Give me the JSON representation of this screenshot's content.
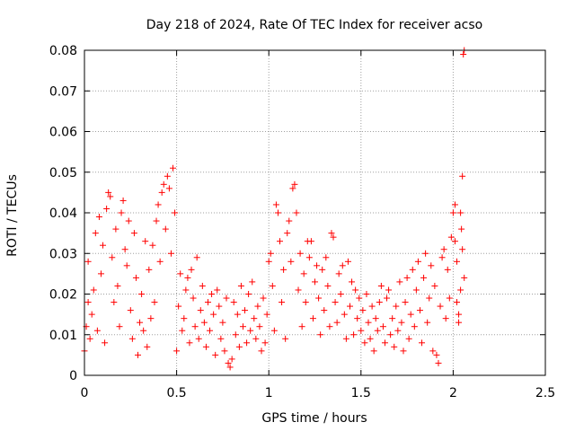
{
  "chart_data": {
    "type": "scatter",
    "title": "Day 218 of 2024, Rate Of TEC Index for receiver acso",
    "xlabel": "GPS time / hours",
    "ylabel": "ROTI / TECUs",
    "xlim": [
      0,
      2.5
    ],
    "ylim": [
      0,
      0.08
    ],
    "x_ticks": [
      "0",
      "0.5",
      "1",
      "1.5",
      "2",
      "2.5"
    ],
    "y_ticks": [
      "0",
      "0.01",
      "0.02",
      "0.03",
      "0.04",
      "0.05",
      "0.06",
      "0.07",
      "0.08"
    ],
    "grid": true,
    "marker": "plus",
    "marker_color": "#ff0000",
    "series": [
      {
        "points": [
          [
            0.0,
            0.006
          ],
          [
            0.01,
            0.012
          ],
          [
            0.02,
            0.018
          ],
          [
            0.02,
            0.028
          ],
          [
            0.03,
            0.009
          ],
          [
            0.04,
            0.015
          ],
          [
            0.05,
            0.021
          ],
          [
            0.06,
            0.035
          ],
          [
            0.07,
            0.011
          ],
          [
            0.08,
            0.039
          ],
          [
            0.09,
            0.025
          ],
          [
            0.1,
            0.032
          ],
          [
            0.11,
            0.008
          ],
          [
            0.12,
            0.041
          ],
          [
            0.13,
            0.045
          ],
          [
            0.14,
            0.044
          ],
          [
            0.15,
            0.029
          ],
          [
            0.16,
            0.018
          ],
          [
            0.17,
            0.036
          ],
          [
            0.18,
            0.022
          ],
          [
            0.19,
            0.012
          ],
          [
            0.2,
            0.04
          ],
          [
            0.21,
            0.043
          ],
          [
            0.22,
            0.031
          ],
          [
            0.23,
            0.027
          ],
          [
            0.24,
            0.038
          ],
          [
            0.25,
            0.016
          ],
          [
            0.26,
            0.009
          ],
          [
            0.27,
            0.035
          ],
          [
            0.28,
            0.024
          ],
          [
            0.29,
            0.005
          ],
          [
            0.3,
            0.013
          ],
          [
            0.31,
            0.02
          ],
          [
            0.32,
            0.011
          ],
          [
            0.33,
            0.033
          ],
          [
            0.34,
            0.007
          ],
          [
            0.35,
            0.026
          ],
          [
            0.36,
            0.014
          ],
          [
            0.37,
            0.032
          ],
          [
            0.38,
            0.018
          ],
          [
            0.39,
            0.038
          ],
          [
            0.4,
            0.042
          ],
          [
            0.41,
            0.028
          ],
          [
            0.42,
            0.045
          ],
          [
            0.43,
            0.047
          ],
          [
            0.44,
            0.036
          ],
          [
            0.45,
            0.049
          ],
          [
            0.46,
            0.046
          ],
          [
            0.47,
            0.03
          ],
          [
            0.48,
            0.051
          ],
          [
            0.49,
            0.04
          ],
          [
            0.5,
            0.006
          ],
          [
            0.51,
            0.017
          ],
          [
            0.52,
            0.025
          ],
          [
            0.53,
            0.011
          ],
          [
            0.54,
            0.014
          ],
          [
            0.55,
            0.021
          ],
          [
            0.56,
            0.024
          ],
          [
            0.57,
            0.008
          ],
          [
            0.58,
            0.026
          ],
          [
            0.59,
            0.019
          ],
          [
            0.6,
            0.012
          ],
          [
            0.61,
            0.029
          ],
          [
            0.62,
            0.009
          ],
          [
            0.63,
            0.016
          ],
          [
            0.64,
            0.022
          ],
          [
            0.65,
            0.013
          ],
          [
            0.66,
            0.007
          ],
          [
            0.67,
            0.018
          ],
          [
            0.68,
            0.011
          ],
          [
            0.69,
            0.02
          ],
          [
            0.7,
            0.015
          ],
          [
            0.71,
            0.005
          ],
          [
            0.72,
            0.021
          ],
          [
            0.73,
            0.017
          ],
          [
            0.74,
            0.009
          ],
          [
            0.75,
            0.013
          ],
          [
            0.76,
            0.006
          ],
          [
            0.77,
            0.019
          ],
          [
            0.78,
            0.003
          ],
          [
            0.79,
            0.002
          ],
          [
            0.8,
            0.004
          ],
          [
            0.81,
            0.018
          ],
          [
            0.82,
            0.01
          ],
          [
            0.83,
            0.015
          ],
          [
            0.84,
            0.007
          ],
          [
            0.85,
            0.022
          ],
          [
            0.86,
            0.012
          ],
          [
            0.87,
            0.016
          ],
          [
            0.88,
            0.008
          ],
          [
            0.89,
            0.02
          ],
          [
            0.9,
            0.011
          ],
          [
            0.91,
            0.023
          ],
          [
            0.92,
            0.014
          ],
          [
            0.93,
            0.009
          ],
          [
            0.94,
            0.017
          ],
          [
            0.95,
            0.012
          ],
          [
            0.96,
            0.006
          ],
          [
            0.97,
            0.019
          ],
          [
            0.98,
            0.008
          ],
          [
            0.99,
            0.015
          ],
          [
            1.0,
            0.028
          ],
          [
            1.01,
            0.03
          ],
          [
            1.02,
            0.022
          ],
          [
            1.03,
            0.011
          ],
          [
            1.04,
            0.042
          ],
          [
            1.05,
            0.04
          ],
          [
            1.06,
            0.033
          ],
          [
            1.07,
            0.018
          ],
          [
            1.08,
            0.026
          ],
          [
            1.09,
            0.009
          ],
          [
            1.1,
            0.035
          ],
          [
            1.11,
            0.038
          ],
          [
            1.12,
            0.028
          ],
          [
            1.13,
            0.046
          ],
          [
            1.14,
            0.047
          ],
          [
            1.15,
            0.04
          ],
          [
            1.16,
            0.021
          ],
          [
            1.17,
            0.03
          ],
          [
            1.18,
            0.012
          ],
          [
            1.19,
            0.025
          ],
          [
            1.2,
            0.018
          ],
          [
            1.21,
            0.033
          ],
          [
            1.22,
            0.029
          ],
          [
            1.23,
            0.033
          ],
          [
            1.24,
            0.014
          ],
          [
            1.25,
            0.023
          ],
          [
            1.26,
            0.027
          ],
          [
            1.27,
            0.019
          ],
          [
            1.28,
            0.01
          ],
          [
            1.29,
            0.026
          ],
          [
            1.3,
            0.016
          ],
          [
            1.31,
            0.029
          ],
          [
            1.32,
            0.022
          ],
          [
            1.33,
            0.012
          ],
          [
            1.34,
            0.035
          ],
          [
            1.35,
            0.034
          ],
          [
            1.36,
            0.018
          ],
          [
            1.37,
            0.013
          ],
          [
            1.38,
            0.025
          ],
          [
            1.39,
            0.02
          ],
          [
            1.4,
            0.027
          ],
          [
            1.41,
            0.015
          ],
          [
            1.42,
            0.009
          ],
          [
            1.43,
            0.028
          ],
          [
            1.44,
            0.017
          ],
          [
            1.45,
            0.023
          ],
          [
            1.46,
            0.01
          ],
          [
            1.47,
            0.021
          ],
          [
            1.48,
            0.014
          ],
          [
            1.49,
            0.019
          ],
          [
            1.5,
            0.011
          ],
          [
            1.51,
            0.016
          ],
          [
            1.52,
            0.008
          ],
          [
            1.53,
            0.02
          ],
          [
            1.54,
            0.013
          ],
          [
            1.55,
            0.009
          ],
          [
            1.56,
            0.017
          ],
          [
            1.57,
            0.006
          ],
          [
            1.58,
            0.014
          ],
          [
            1.59,
            0.011
          ],
          [
            1.6,
            0.018
          ],
          [
            1.61,
            0.022
          ],
          [
            1.62,
            0.012
          ],
          [
            1.63,
            0.008
          ],
          [
            1.64,
            0.019
          ],
          [
            1.65,
            0.021
          ],
          [
            1.66,
            0.01
          ],
          [
            1.67,
            0.014
          ],
          [
            1.68,
            0.007
          ],
          [
            1.69,
            0.017
          ],
          [
            1.7,
            0.011
          ],
          [
            1.71,
            0.023
          ],
          [
            1.72,
            0.013
          ],
          [
            1.73,
            0.006
          ],
          [
            1.74,
            0.018
          ],
          [
            1.75,
            0.024
          ],
          [
            1.76,
            0.009
          ],
          [
            1.77,
            0.015
          ],
          [
            1.78,
            0.026
          ],
          [
            1.79,
            0.012
          ],
          [
            1.8,
            0.021
          ],
          [
            1.81,
            0.028
          ],
          [
            1.82,
            0.016
          ],
          [
            1.83,
            0.008
          ],
          [
            1.84,
            0.024
          ],
          [
            1.85,
            0.03
          ],
          [
            1.86,
            0.013
          ],
          [
            1.87,
            0.019
          ],
          [
            1.88,
            0.027
          ],
          [
            1.89,
            0.006
          ],
          [
            1.9,
            0.022
          ],
          [
            1.91,
            0.005
          ],
          [
            1.92,
            0.003
          ],
          [
            1.93,
            0.017
          ],
          [
            1.94,
            0.029
          ],
          [
            1.95,
            0.031
          ],
          [
            1.96,
            0.014
          ],
          [
            1.97,
            0.026
          ],
          [
            1.98,
            0.019
          ],
          [
            1.99,
            0.034
          ],
          [
            2.0,
            0.04
          ],
          [
            2.01,
            0.042
          ],
          [
            2.02,
            0.028
          ],
          [
            2.03,
            0.015
          ],
          [
            2.04,
            0.04
          ],
          [
            2.045,
            0.036
          ],
          [
            2.05,
            0.049
          ],
          [
            2.055,
            0.079
          ],
          [
            2.06,
            0.08
          ],
          [
            2.06,
            0.024
          ],
          [
            2.05,
            0.031
          ],
          [
            2.04,
            0.021
          ],
          [
            2.03,
            0.013
          ],
          [
            2.02,
            0.018
          ],
          [
            2.01,
            0.033
          ]
        ]
      }
    ]
  }
}
